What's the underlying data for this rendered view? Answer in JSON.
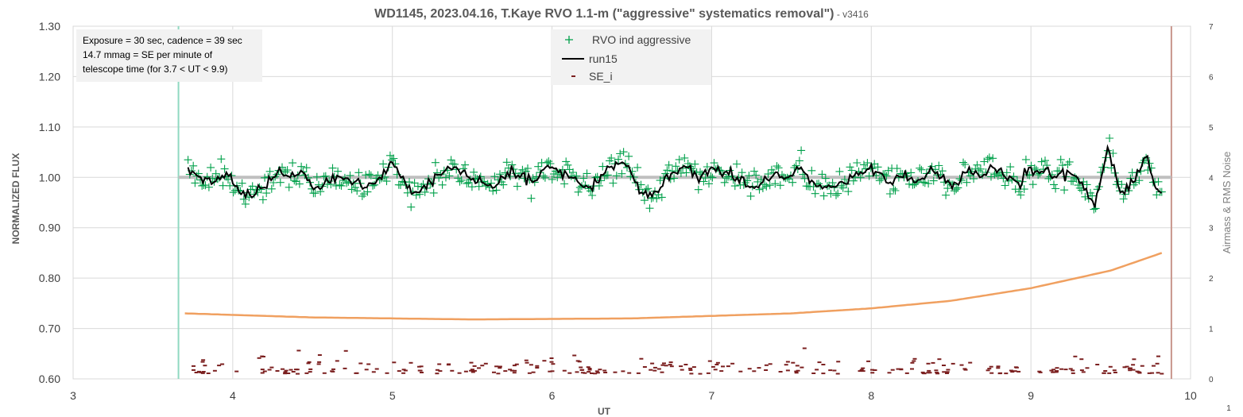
{
  "chart_data": {
    "type": "scatter",
    "title": "WD1145, 2023.04.16, T.Kaye RVO 1.1-m (\"aggressive\" systematics removal\")",
    "subtitle": " - v3416",
    "xlabel": "UT",
    "ylabel": "NORMALIZED FLUX",
    "y2label": "Airmass & RMS Noise",
    "xlim": [
      3,
      10
    ],
    "ylim": [
      0.6,
      1.3
    ],
    "y2lim": [
      0,
      7
    ],
    "x_ticks": [
      "3",
      "4",
      "5",
      "6",
      "7",
      "8",
      "9",
      "10"
    ],
    "y_ticks": [
      "0.60",
      "0.70",
      "0.80",
      "0.90",
      "1.00",
      "1.10",
      "1.20",
      "1.30"
    ],
    "y2_ticks": [
      "0",
      "1",
      "2",
      "3",
      "4",
      "5",
      "6",
      "7"
    ],
    "grid": true,
    "legend_position": "top-center",
    "corner_label": "1",
    "notes": [
      "Exposure = 30 sec, cadence = 39 sec",
      "14.7 mmag = SE per minute of",
      "telescope time  (for 3.7 < UT < 9.9)"
    ],
    "reference_lines": {
      "flux_level": 1.0,
      "start_ut": 3.66,
      "end_ut": 9.88
    },
    "legend": [
      {
        "label": "RVO ind aggressive",
        "marker": "plus",
        "color": "#00a04a"
      },
      {
        "label": "run15",
        "marker": "line",
        "color": "#000000"
      },
      {
        "label": "SE_i",
        "marker": "dash",
        "color": "#7b1f1f"
      }
    ],
    "series": [
      {
        "name": "RVO ind aggressive",
        "axis": "left",
        "color": "#00a04a",
        "x_range": [
          3.72,
          9.82
        ],
        "count": 560,
        "center": 1.0,
        "scatter": 0.022
      },
      {
        "name": "run15",
        "axis": "left",
        "color": "#000000",
        "x_range": [
          3.72,
          9.82
        ],
        "points": [
          [
            3.72,
            1.02
          ],
          [
            3.8,
            1.0
          ],
          [
            3.88,
            0.99
          ],
          [
            3.96,
            1.01
          ],
          [
            4.04,
            0.97
          ],
          [
            4.12,
            0.96
          ],
          [
            4.2,
            0.98
          ],
          [
            4.28,
            1.01
          ],
          [
            4.36,
            1.0
          ],
          [
            4.44,
            1.01
          ],
          [
            4.52,
            0.98
          ],
          [
            4.6,
            0.99
          ],
          [
            4.68,
            1.0
          ],
          [
            4.76,
            0.99
          ],
          [
            4.84,
            0.98
          ],
          [
            4.92,
            1.0
          ],
          [
            5.0,
            1.03
          ],
          [
            5.08,
            0.99
          ],
          [
            5.16,
            0.97
          ],
          [
            5.24,
            0.99
          ],
          [
            5.32,
            1.01
          ],
          [
            5.4,
            1.02
          ],
          [
            5.48,
            1.0
          ],
          [
            5.56,
            0.99
          ],
          [
            5.64,
            0.98
          ],
          [
            5.72,
            1.01
          ],
          [
            5.8,
            1.0
          ],
          [
            5.88,
            0.99
          ],
          [
            5.96,
            1.02
          ],
          [
            6.04,
            1.01
          ],
          [
            6.12,
            1.0
          ],
          [
            6.2,
            0.98
          ],
          [
            6.28,
            0.99
          ],
          [
            6.36,
            1.02
          ],
          [
            6.44,
            1.03
          ],
          [
            6.52,
            0.99
          ],
          [
            6.6,
            0.96
          ],
          [
            6.68,
            0.98
          ],
          [
            6.76,
            1.01
          ],
          [
            6.84,
            1.02
          ],
          [
            6.92,
            0.99
          ],
          [
            7.0,
            1.02
          ],
          [
            7.08,
            1.01
          ],
          [
            7.16,
            1.0
          ],
          [
            7.24,
            0.98
          ],
          [
            7.32,
            0.99
          ],
          [
            7.4,
            1.01
          ],
          [
            7.48,
            1.0
          ],
          [
            7.56,
            1.02
          ],
          [
            7.64,
            0.99
          ],
          [
            7.72,
            0.98
          ],
          [
            7.8,
            0.99
          ],
          [
            7.88,
            1.0
          ],
          [
            7.96,
            1.01
          ],
          [
            8.04,
            1.01
          ],
          [
            8.12,
            0.99
          ],
          [
            8.2,
            1.0
          ],
          [
            8.28,
            0.99
          ],
          [
            8.36,
            1.01
          ],
          [
            8.44,
            1.0
          ],
          [
            8.52,
            0.99
          ],
          [
            8.6,
            1.01
          ],
          [
            8.68,
            1.0
          ],
          [
            8.76,
            1.02
          ],
          [
            8.84,
            1.0
          ],
          [
            8.92,
            0.99
          ],
          [
            9.0,
            1.02
          ],
          [
            9.08,
            1.01
          ],
          [
            9.16,
            1.0
          ],
          [
            9.24,
            1.01
          ],
          [
            9.32,
            0.99
          ],
          [
            9.4,
            0.94
          ],
          [
            9.48,
            1.06
          ],
          [
            9.56,
            0.97
          ],
          [
            9.64,
            0.99
          ],
          [
            9.72,
            1.04
          ],
          [
            9.78,
            0.98
          ],
          [
            9.82,
            0.97
          ]
        ]
      },
      {
        "name": "Airmass",
        "axis": "right",
        "color": "#f0a060",
        "x_range": [
          3.7,
          9.82
        ],
        "model": "1.0/(cos(z))",
        "points": [
          [
            3.7,
            1.3
          ],
          [
            4.5,
            1.22
          ],
          [
            5.5,
            1.18
          ],
          [
            6.5,
            1.2
          ],
          [
            7.5,
            1.3
          ],
          [
            8.0,
            1.4
          ],
          [
            8.5,
            1.55
          ],
          [
            9.0,
            1.8
          ],
          [
            9.5,
            2.15
          ],
          [
            9.82,
            2.5
          ]
        ]
      },
      {
        "name": "SE_i",
        "axis": "right",
        "color": "#7b1f1f",
        "x_range": [
          3.72,
          9.82
        ],
        "count": 300,
        "mean": 0.18,
        "spread": 0.14
      }
    ]
  }
}
